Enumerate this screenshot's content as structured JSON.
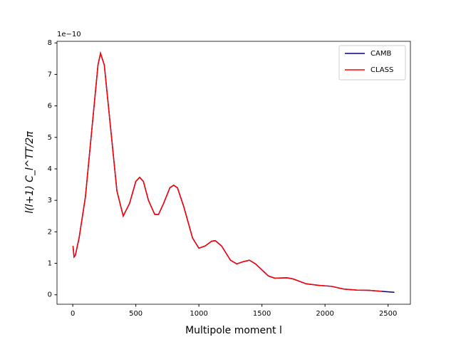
{
  "chart_data": {
    "type": "line",
    "x_label": "Multipole moment l",
    "y_label": "l(l+1) C_l^TT/2π",
    "y_offset_label": "1e−10",
    "x": [
      2,
      10,
      20,
      50,
      100,
      150,
      200,
      220,
      250,
      300,
      350,
      400,
      450,
      500,
      530,
      560,
      600,
      650,
      680,
      720,
      770,
      800,
      830,
      880,
      950,
      1000,
      1050,
      1100,
      1130,
      1180,
      1250,
      1300,
      1350,
      1400,
      1450,
      1550,
      1600,
      1700,
      1750,
      1850,
      1950,
      2050,
      2150,
      2250,
      2350,
      2450,
      2550
    ],
    "series": [
      {
        "name": "CAMB",
        "color": "#00008b",
        "values": [
          1.55,
          1.2,
          1.25,
          1.8,
          3.1,
          5.2,
          7.3,
          7.67,
          7.3,
          5.3,
          3.3,
          2.5,
          2.9,
          3.6,
          3.73,
          3.6,
          3.0,
          2.55,
          2.55,
          2.9,
          3.4,
          3.48,
          3.4,
          2.8,
          1.8,
          1.48,
          1.55,
          1.7,
          1.72,
          1.55,
          1.1,
          0.98,
          1.05,
          1.1,
          0.98,
          0.6,
          0.53,
          0.54,
          0.5,
          0.35,
          0.3,
          0.27,
          0.18,
          0.15,
          0.14,
          0.11,
          0.08
        ]
      },
      {
        "name": "CLASS",
        "color": "#ff0000",
        "values": [
          1.55,
          1.2,
          1.25,
          1.8,
          3.1,
          5.2,
          7.3,
          7.67,
          7.3,
          5.3,
          3.3,
          2.5,
          2.9,
          3.6,
          3.73,
          3.6,
          3.0,
          2.55,
          2.55,
          2.9,
          3.4,
          3.48,
          3.4,
          2.8,
          1.8,
          1.48,
          1.55,
          1.7,
          1.72,
          1.55,
          1.1,
          0.98,
          1.05,
          1.1,
          0.98,
          0.6,
          0.53,
          0.54,
          0.5,
          0.35,
          0.3,
          0.27,
          0.18,
          0.15,
          0.14,
          0.11,
          null
        ]
      }
    ],
    "xlim": [
      -125,
      2677
    ],
    "xticks": [
      0,
      500,
      1000,
      1500,
      2000,
      2500
    ],
    "ylim": [
      -0.3,
      8.05
    ],
    "yticks": [
      0,
      1,
      2,
      3,
      4,
      5,
      6,
      7,
      8
    ],
    "legend": "upper right",
    "grid": false
  }
}
